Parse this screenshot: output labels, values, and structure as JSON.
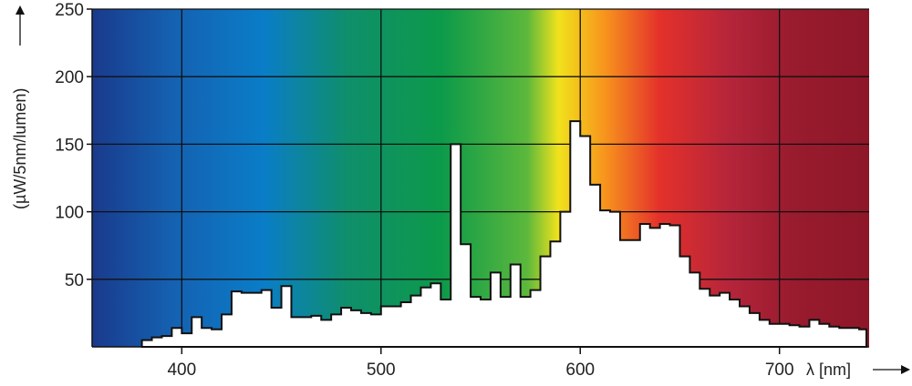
{
  "chart_data": {
    "type": "area",
    "title": "",
    "ylabel": "(µW/5nm/lumen)",
    "xlabel": "λ [nm]",
    "xlim": [
      355,
      745
    ],
    "ylim": [
      0,
      250
    ],
    "x_ticks": [
      400,
      500,
      600,
      700
    ],
    "y_ticks": [
      50,
      100,
      150,
      200,
      250
    ],
    "grid": true,
    "background": "visible spectrum color gradient",
    "colors": {
      "fill": "#ffffff",
      "outline": "#111111",
      "grid": "#111111",
      "spectrum_stops": [
        "#1a3a8c",
        "#1560b0",
        "#0a7dc8",
        "#0f8f6a",
        "#0c9a4a",
        "#5cb83c",
        "#f1e21c",
        "#f7941d",
        "#e4312b",
        "#b5253a",
        "#991b2e",
        "#8d1728"
      ]
    },
    "series": [
      {
        "points": [
          [
            380,
            5
          ],
          [
            385,
            7
          ],
          [
            390,
            8
          ],
          [
            395,
            14
          ],
          [
            400,
            10
          ],
          [
            405,
            22
          ],
          [
            410,
            14
          ],
          [
            415,
            13
          ],
          [
            420,
            24
          ],
          [
            425,
            41
          ],
          [
            430,
            40
          ],
          [
            435,
            40
          ],
          [
            440,
            42
          ],
          [
            445,
            29
          ],
          [
            450,
            45
          ],
          [
            455,
            22
          ],
          [
            460,
            22
          ],
          [
            465,
            23
          ],
          [
            470,
            20
          ],
          [
            475,
            24
          ],
          [
            480,
            29
          ],
          [
            485,
            27
          ],
          [
            490,
            25
          ],
          [
            495,
            24
          ],
          [
            500,
            30
          ],
          [
            505,
            30
          ],
          [
            510,
            33
          ],
          [
            515,
            38
          ],
          [
            520,
            44
          ],
          [
            525,
            47
          ],
          [
            530,
            35
          ],
          [
            535,
            150
          ],
          [
            540,
            76
          ],
          [
            545,
            37
          ],
          [
            550,
            35
          ],
          [
            555,
            55
          ],
          [
            560,
            37
          ],
          [
            565,
            61
          ],
          [
            570,
            37
          ],
          [
            575,
            42
          ],
          [
            580,
            67
          ],
          [
            585,
            78
          ],
          [
            590,
            100
          ],
          [
            595,
            167
          ],
          [
            600,
            156
          ],
          [
            605,
            120
          ],
          [
            610,
            101
          ],
          [
            615,
            100
          ],
          [
            620,
            79
          ],
          [
            625,
            79
          ],
          [
            630,
            91
          ],
          [
            635,
            88
          ],
          [
            640,
            91
          ],
          [
            645,
            90
          ],
          [
            650,
            67
          ],
          [
            655,
            55
          ],
          [
            660,
            43
          ],
          [
            665,
            38
          ],
          [
            670,
            40
          ],
          [
            675,
            35
          ],
          [
            680,
            30
          ],
          [
            685,
            25
          ],
          [
            690,
            20
          ],
          [
            695,
            17
          ],
          [
            700,
            17
          ],
          [
            705,
            16
          ],
          [
            710,
            15
          ],
          [
            715,
            20
          ],
          [
            720,
            17
          ],
          [
            725,
            15
          ],
          [
            730,
            14
          ],
          [
            735,
            14
          ],
          [
            740,
            13
          ]
        ]
      }
    ]
  }
}
